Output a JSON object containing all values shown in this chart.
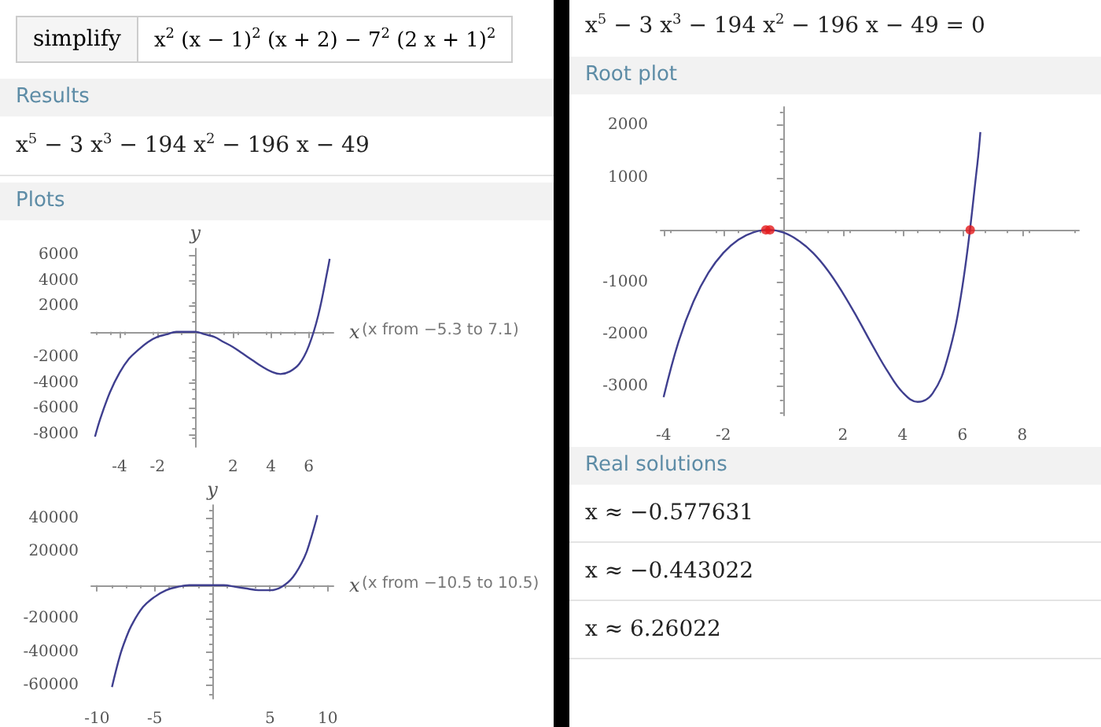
{
  "chart_data": [
    {
      "type": "other",
      "annotations": [
        "simplify",
        "x$^{2}$ (x − 1)$^{2}$ (x + 2) − 7$^{2}$ (2 x + 1)$^{2}$"
      ]
    },
    {
      "type": "other",
      "title": "Results",
      "annotations": [
        "x$^{5}$ − 3 x$^{3}$ − 194 x$^{2}$ − 196 x − 49"
      ]
    },
    {
      "type": "line",
      "title": "Plots",
      "xlabel": "x",
      "ylabel": "y",
      "annotations": [
        "(x from −5.3 to 7.1)"
      ],
      "xlim": [
        -5.5,
        7.3
      ],
      "ylim": [
        -9000,
        6500
      ],
      "xticks": [
        -4,
        -2,
        2,
        4,
        6
      ],
      "yticks": [
        -8000,
        -6000,
        -4000,
        -2000,
        2000,
        4000,
        6000
      ],
      "series": [
        {
          "color": "#3f3f8f",
          "x": [
            -5.3,
            -5,
            -4.5,
            -4,
            -3.5,
            -3,
            -2.5,
            -2,
            -1.5,
            -1,
            -0.5,
            0,
            0.5,
            1,
            1.5,
            2,
            2.5,
            3,
            3.5,
            4,
            4.5,
            5,
            5.5,
            6,
            6.5,
            7,
            7.1
          ],
          "values": [
            -8200,
            -6700,
            -4700,
            -3200,
            -2100,
            -1400,
            -800,
            -400,
            -200,
            0,
            0,
            0,
            -200,
            -400,
            -800,
            -1200,
            -1700,
            -2200,
            -2700,
            -3100,
            -3300,
            -3100,
            -2500,
            -1100,
            1300,
            4900,
            5700
          ]
        }
      ]
    },
    {
      "type": "line",
      "xlabel": "x",
      "ylabel": "y",
      "annotations": [
        "(x from −10.5 to 10.5)"
      ],
      "xlim": [
        -10.5,
        10.5
      ],
      "ylim": [
        -68000,
        48000
      ],
      "xticks": [
        -10,
        -5,
        5,
        10
      ],
      "yticks": [
        -60000,
        -40000,
        -20000,
        20000,
        40000
      ],
      "series": [
        {
          "color": "#3f3f8f",
          "x": [
            -8.7,
            -8,
            -7.5,
            -7,
            -6,
            -5,
            -4,
            -3,
            -2,
            -1,
            0,
            1,
            2,
            3,
            4,
            5,
            6,
            7,
            8,
            8.5,
            9,
            9.1
          ],
          "values": [
            -61000,
            -42000,
            -32000,
            -24000,
            -13000,
            -7000,
            -3000,
            -1000,
            0,
            0,
            0,
            0,
            -1000,
            -2000,
            -3000,
            -3000,
            -1000,
            5000,
            17000,
            27000,
            39000,
            42000
          ]
        }
      ]
    },
    {
      "type": "other",
      "annotations": [
        "x$^{5}$ − 3 x$^{3}$ − 194 x$^{2}$ − 196 x − 49 = 0"
      ]
    },
    {
      "type": "line",
      "title": "Root plot",
      "xlim": [
        -4.1,
        9.9
      ],
      "ylim": [
        -3550,
        2350
      ],
      "xticks": [
        -4,
        -2,
        2,
        4,
        6,
        8
      ],
      "yticks": [
        -3000,
        -2000,
        -1000,
        1000,
        2000
      ],
      "series": [
        {
          "color": "#3f3f8f",
          "x": [
            -4,
            -3.5,
            -3,
            -2.5,
            -2,
            -1.5,
            -1,
            -0.5,
            0,
            0.5,
            1,
            1.5,
            2,
            2.5,
            3,
            3.5,
            4,
            4.5,
            5,
            5.5,
            6,
            6.5,
            6.6
          ],
          "values": [
            -3200,
            -2140,
            -1370,
            -820,
            -440,
            -190,
            -50,
            0,
            -50,
            -200,
            -440,
            -780,
            -1210,
            -1700,
            -2220,
            -2710,
            -3110,
            -3290,
            -3130,
            -2460,
            -1080,
            1260,
            1870
          ]
        },
        {
          "type": "scatter",
          "color": "#e31a1c",
          "x": [
            -0.577631,
            -0.443022,
            6.26022
          ],
          "values": [
            0,
            0,
            0
          ]
        }
      ]
    },
    {
      "type": "other",
      "title": "Real solutions",
      "annotations": [
        "x ≈ −0.577631",
        "x ≈ −0.443022",
        "x ≈ 6.26022"
      ]
    }
  ]
}
